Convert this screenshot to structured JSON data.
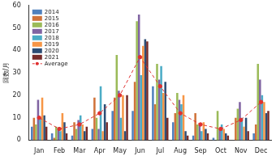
{
  "chart_data": {
    "type": "bar",
    "ylabel": "回数/月",
    "categories": [
      "Jan",
      "Feb",
      "Mar",
      "Apr",
      "May",
      "Jun",
      "Jul",
      "Aug",
      "Sep",
      "Oct",
      "Nov",
      "Dec"
    ],
    "series": [
      {
        "name": "2014",
        "color": "#4f81bd",
        "values": [
          6,
          3,
          2,
          5,
          13,
          13,
          24,
          8,
          2,
          1,
          0,
          3
        ]
      },
      {
        "name": "2015",
        "color": "#d0733a",
        "values": [
          10,
          1,
          8,
          19,
          19,
          26,
          16,
          12,
          12,
          0,
          10,
          7
        ]
      },
      {
        "name": "2016",
        "color": "#9bbb59",
        "values": [
          7,
          6,
          5,
          10,
          38,
          53,
          34,
          21,
          7,
          13,
          14,
          34
        ]
      },
      {
        "name": "2017",
        "color": "#8064a2",
        "values": [
          18,
          5,
          9,
          5,
          22,
          56,
          27,
          18,
          7,
          5,
          17,
          27
        ]
      },
      {
        "name": "2018",
        "color": "#4bacc6",
        "values": [
          10,
          4,
          11,
          24,
          10,
          29,
          33,
          16,
          4,
          7,
          10,
          20
        ]
      },
      {
        "name": "2019",
        "color": "#f79646",
        "values": [
          19,
          12,
          7,
          4,
          20,
          42,
          21,
          20,
          8,
          5,
          6,
          17
        ]
      },
      {
        "name": "2020",
        "color": "#2c4d75",
        "values": [
          11,
          8,
          4,
          16,
          4,
          45,
          26,
          4,
          5,
          3,
          10,
          12
        ]
      },
      {
        "name": "2021",
        "color": "#772c2a",
        "values": [
          6,
          3,
          6,
          8,
          20,
          44,
          10,
          2,
          3,
          2,
          4,
          13
        ]
      },
      {
        "name": "Average",
        "color": "#e03030",
        "type": "line",
        "line_style": "dashed",
        "marker": "circle",
        "values": [
          10,
          5,
          7,
          12,
          20,
          37,
          24,
          12,
          7,
          5,
          9,
          17
        ]
      }
    ],
    "ylim": [
      0,
      60
    ],
    "yticks": [
      0,
      10,
      20,
      30,
      40,
      50,
      60
    ],
    "grid": false,
    "legend": "upper left"
  }
}
